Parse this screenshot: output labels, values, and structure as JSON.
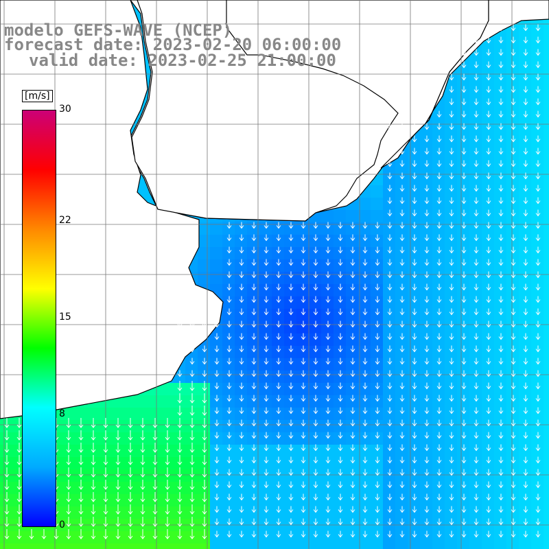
{
  "title": {
    "line1": "modelo GEFS-WAVE (NCEP)",
    "line2": "forecast date: 2023-02-20 06:00:00",
    "line3": "valid date: 2023-02-25 21:00:00"
  },
  "colorbar": {
    "unit": "[m/s]",
    "ticks": [
      {
        "label": "30",
        "value": 30
      },
      {
        "label": "22",
        "value": 22
      },
      {
        "label": "15",
        "value": 15
      },
      {
        "label": "8",
        "value": 8
      },
      {
        "label": "0",
        "value": 0
      }
    ],
    "colors": [
      "#0000ff",
      "#00aaff",
      "#00ffff",
      "#00ff00",
      "#ffff00",
      "#ff8800",
      "#ff0000",
      "#cc0077"
    ]
  },
  "map": {
    "land_color": "#ffffff",
    "coast_color": "#000000",
    "grid_color": "#777777",
    "arrow_color": "#ffffff"
  }
}
